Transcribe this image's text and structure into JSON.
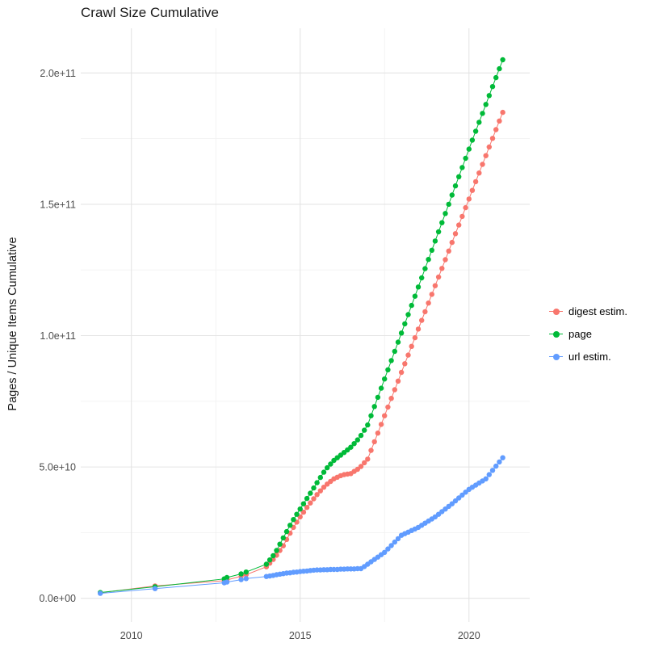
{
  "chart_data": {
    "type": "scatter",
    "title": "Crawl Size Cumulative",
    "xlabel": "",
    "ylabel": "Pages / Unique Items Cumulative",
    "grid": true,
    "legend_position": "right",
    "x_ticks": [
      2010,
      2015,
      2020
    ],
    "x_minor_ticks": [
      2012.5,
      2017.5
    ],
    "x_range": [
      2008.5,
      2021.8
    ],
    "y_unit": "1e9 (billions of pages / unique items)",
    "y_ticks_billions": [
      0,
      50,
      100,
      150,
      200
    ],
    "y_tick_labels": [
      "0.0e+00",
      "5.0e+10",
      "1.0e+11",
      "1.5e+11",
      "2.0e+11"
    ],
    "y_minor_ticks_billions": [
      25,
      75,
      125,
      175
    ],
    "y_range_billions": [
      -9,
      217
    ],
    "series": [
      {
        "name": "digest estim.",
        "color": "#F8766D",
        "early_points": [
          [
            2009.08,
            2.1
          ],
          [
            2010.7,
            4.7
          ],
          [
            2012.75,
            6.7
          ],
          [
            2012.83,
            7.0
          ],
          [
            2013.25,
            8.4
          ],
          [
            2013.4,
            9.0
          ]
        ],
        "dense": {
          "x_start": 2014.0,
          "x_step": 0.1,
          "values": [
            12.0,
            13.4,
            14.8,
            16.4,
            18.2,
            20.0,
            22.4,
            24.8,
            27.0,
            29.0,
            31.0,
            32.8,
            34.6,
            36.3,
            37.9,
            39.5,
            40.9,
            42.3,
            43.5,
            44.5,
            45.5,
            46.1,
            46.7,
            47.1,
            47.3,
            47.5,
            48.3,
            49.1,
            50.2,
            51.6,
            53.0,
            56.3,
            59.6,
            62.9,
            66.2,
            69.5,
            72.8,
            76.1,
            79.4,
            82.7,
            86.0,
            89.3,
            92.6,
            95.9,
            99.2,
            102.5,
            105.8,
            109.1,
            112.4,
            115.7,
            119.0,
            122.3,
            125.6,
            128.9,
            132.2,
            135.5,
            138.8,
            142.1,
            145.4,
            148.7,
            152.0,
            155.3,
            158.6,
            161.9,
            165.2,
            168.5,
            171.8,
            175.1,
            178.4,
            181.7,
            185.0
          ]
        }
      },
      {
        "name": "page",
        "color": "#00BA38",
        "early_points": [
          [
            2009.08,
            2.2
          ],
          [
            2010.7,
            4.4
          ],
          [
            2012.75,
            7.4
          ],
          [
            2012.83,
            7.9
          ],
          [
            2013.25,
            9.3
          ],
          [
            2013.4,
            10.0
          ]
        ],
        "dense": {
          "x_start": 2014.0,
          "x_step": 0.1,
          "values": [
            13.0,
            14.6,
            16.2,
            18.2,
            20.6,
            23.0,
            25.4,
            27.8,
            30.0,
            32.0,
            34.0,
            36.0,
            38.0,
            40.0,
            42.0,
            44.0,
            46.0,
            48.0,
            49.7,
            51.1,
            52.5,
            53.5,
            54.5,
            55.5,
            56.5,
            57.5,
            58.9,
            60.3,
            62.0,
            64.0,
            66.0,
            69.5,
            73.0,
            76.5,
            80.0,
            83.5,
            87.0,
            90.5,
            94.0,
            97.5,
            101.0,
            104.5,
            108.0,
            111.5,
            115.0,
            118.5,
            122.0,
            125.5,
            129.0,
            132.5,
            136.0,
            139.5,
            143.0,
            146.5,
            150.0,
            153.5,
            157.0,
            160.5,
            164.0,
            167.5,
            171.0,
            174.4,
            177.8,
            181.2,
            184.6,
            188.0,
            191.4,
            194.8,
            198.2,
            201.6,
            205.0
          ]
        }
      },
      {
        "name": "url estim.",
        "color": "#619CFF",
        "early_points": [
          [
            2009.08,
            1.9
          ],
          [
            2010.7,
            3.7
          ],
          [
            2012.75,
            5.9
          ],
          [
            2012.83,
            6.2
          ],
          [
            2013.25,
            7.1
          ],
          [
            2013.4,
            7.5
          ]
        ],
        "dense": {
          "x_start": 2014.0,
          "x_step": 0.1,
          "values": [
            8.3,
            8.5,
            8.7,
            9.0,
            9.2,
            9.4,
            9.6,
            9.7,
            9.9,
            10.0,
            10.2,
            10.3,
            10.4,
            10.6,
            10.7,
            10.8,
            10.8,
            10.9,
            10.9,
            11.0,
            11.0,
            11.0,
            11.1,
            11.1,
            11.2,
            11.2,
            11.2,
            11.3,
            11.3,
            12.1,
            13.0,
            13.9,
            14.8,
            15.7,
            16.6,
            17.5,
            18.8,
            20.1,
            21.4,
            22.7,
            24.0,
            24.6,
            25.2,
            25.8,
            26.4,
            27.0,
            27.8,
            28.6,
            29.4,
            30.2,
            31.0,
            32.0,
            33.0,
            34.0,
            35.0,
            36.0,
            37.1,
            38.2,
            39.3,
            40.4,
            41.5,
            42.3,
            43.1,
            43.9,
            44.7,
            45.5,
            47.1,
            48.7,
            50.3,
            51.9,
            53.5
          ]
        }
      }
    ],
    "style": {
      "major_grid_color": "#e4e4e4",
      "minor_grid_color": "#f2f2f2",
      "axis_text_color": "#4d4d4d",
      "background_color": "#ffffff"
    }
  }
}
